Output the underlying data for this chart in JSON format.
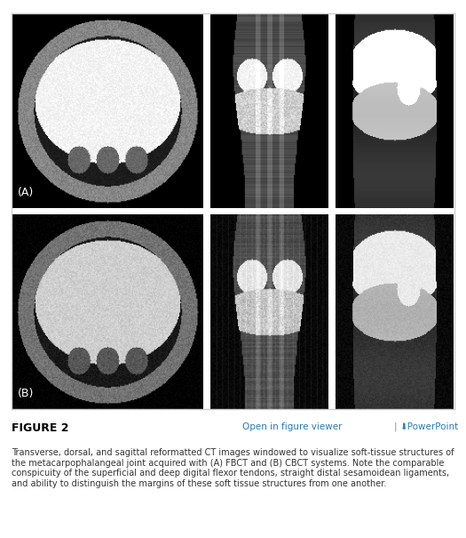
{
  "figure_label": "FIGURE 2",
  "link_text": "Open in figure viewer",
  "powerpoint_text": "⬇PowerPoint",
  "caption": "Transverse, dorsal, and sagittal reformatted CT images windowed to visualize soft-tissue structures of the metacarpophalangeal joint acquired with (A) FBCT and (B) CBCT systems. Note the comparable conspicuity of the superficial and deep digital flexor tendons, straight distal sesamoidean ligaments, and ability to distinguish the margins of these soft tissue structures from one another.",
  "label_A": "(A)",
  "label_B": "(B)",
  "outer_bg": "#ffffff",
  "border_color": "#cccccc",
  "figure_label_color": "#000000",
  "link_color": "#2a7ab8",
  "caption_color": "#333333",
  "separator_color": "#888888"
}
